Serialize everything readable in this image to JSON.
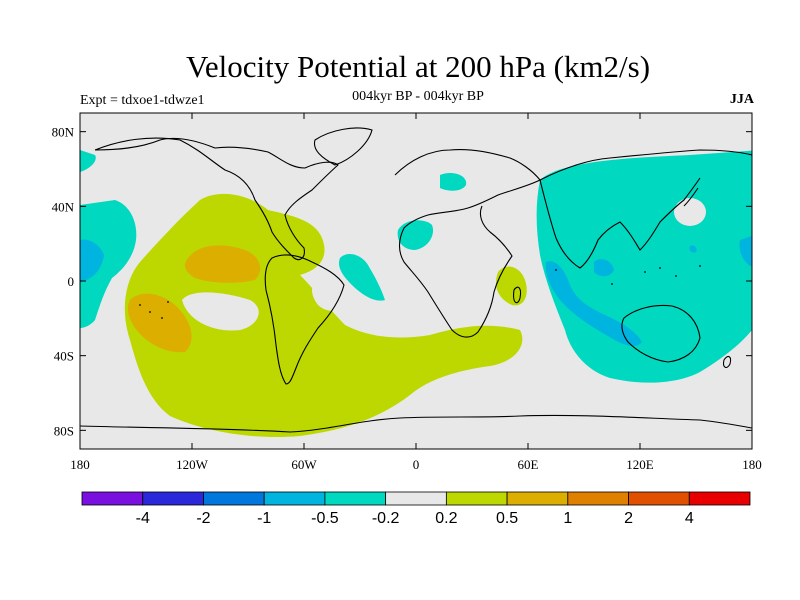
{
  "title": "Velocity Potential at 200 hPa (km2/s)",
  "subtitle": "004kyr BP - 004kyr BP",
  "expt_label": "Expt = tdxoe1-tdwze1",
  "season": "JJA",
  "map": {
    "projection": "cylindrical equidistant",
    "lon_range": [
      -180,
      180
    ],
    "lat_range": [
      -90,
      90
    ],
    "lat_ticks": [
      {
        "value": 80,
        "label": "80N"
      },
      {
        "value": 40,
        "label": "40N"
      },
      {
        "value": 0,
        "label": "0"
      },
      {
        "value": -40,
        "label": "40S"
      },
      {
        "value": -80,
        "label": "80S"
      }
    ],
    "lon_ticks": [
      {
        "value": -180,
        "label": "180"
      },
      {
        "value": -120,
        "label": "120W"
      },
      {
        "value": -60,
        "label": "60W"
      },
      {
        "value": 0,
        "label": "0"
      },
      {
        "value": 60,
        "label": "60E"
      },
      {
        "value": 120,
        "label": "120E"
      },
      {
        "value": 180,
        "label": "180"
      }
    ]
  },
  "colorbar": {
    "colors": [
      "#7a10e0",
      "#2a28d8",
      "#0077dd",
      "#00b4e0",
      "#00d8c0",
      "#e8e8e8",
      "#bcd800",
      "#dcae00",
      "#e08000",
      "#e05000",
      "#e80000"
    ],
    "labels": [
      "-4",
      "-2",
      "-1",
      "-0.5",
      "-0.2",
      "0.2",
      "0.5",
      "1",
      "2",
      "4"
    ]
  },
  "regions": [
    {
      "level": "-0.5 to -0.2",
      "color": "#00d8c0",
      "area": "Asia, Indian Ocean, Western Pacific"
    },
    {
      "level": "-1 to -0.5",
      "color": "#00b4e0",
      "area": "Indian Ocean / Maritime Continent"
    },
    {
      "level": "0.2 to 0.5",
      "color": "#bcd800",
      "area": "Eastern Pacific, South America, South Atlantic, Southern Ocean"
    },
    {
      "level": "0.5 to 1",
      "color": "#dcae00",
      "area": "Eastern tropical Pacific"
    }
  ]
}
